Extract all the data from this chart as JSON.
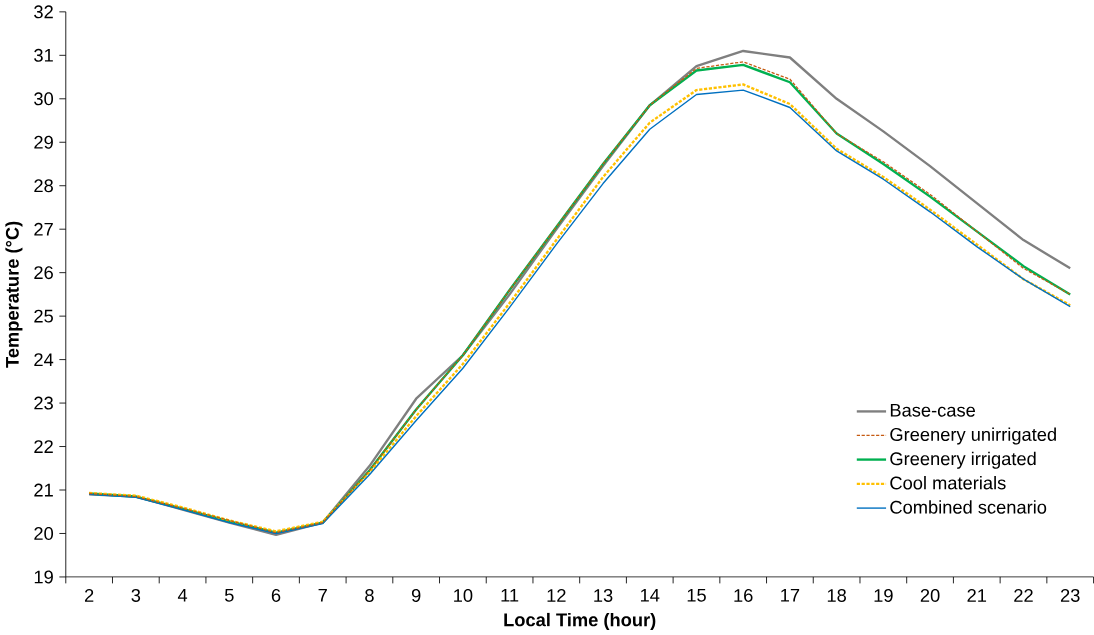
{
  "chart_data": {
    "type": "line",
    "xlabel": "Local Time (hour)",
    "ylabel": "Temperature (°C)",
    "categories": [
      "2",
      "3",
      "4",
      "5",
      "6",
      "7",
      "8",
      "9",
      "10",
      "11",
      "12",
      "13",
      "14",
      "15",
      "16",
      "17",
      "18",
      "19",
      "20",
      "21",
      "22",
      "23"
    ],
    "ylim": [
      19,
      32
    ],
    "yticks": [
      19,
      20,
      21,
      22,
      23,
      24,
      25,
      26,
      27,
      28,
      29,
      30,
      31,
      32
    ],
    "grid": false,
    "legend": "bottom right",
    "marker": "none",
    "series": [
      {
        "name": "Base-case",
        "color": "#7f7f7f",
        "line_style": "solid",
        "values": [
          20.9,
          20.85,
          20.55,
          20.25,
          19.97,
          20.25,
          21.55,
          23.1,
          24.1,
          25.5,
          27.0,
          28.45,
          29.85,
          30.75,
          31.1,
          30.95,
          30.0,
          29.25,
          28.45,
          27.6,
          26.75,
          26.1
        ]
      },
      {
        "name": "Greenery unirrigated",
        "color": "#c55a11",
        "line_style": "dashed",
        "values": [
          20.92,
          20.85,
          20.58,
          20.3,
          20.02,
          20.25,
          21.45,
          22.85,
          24.1,
          25.6,
          27.05,
          28.5,
          29.85,
          30.7,
          30.85,
          30.45,
          29.2,
          28.55,
          27.8,
          26.95,
          26.1,
          25.5
        ]
      },
      {
        "name": "Greenery irrigated",
        "color": "#00b050",
        "line_style": "solid",
        "values": [
          20.92,
          20.85,
          20.57,
          20.28,
          20.02,
          20.25,
          21.45,
          22.85,
          24.1,
          25.6,
          27.05,
          28.5,
          29.85,
          30.65,
          30.78,
          30.38,
          29.2,
          28.5,
          27.75,
          26.95,
          26.15,
          25.5
        ]
      },
      {
        "name": "Cool materials",
        "color": "#ffc000",
        "line_style": "dashed",
        "values": [
          20.93,
          20.87,
          20.6,
          20.3,
          20.05,
          20.27,
          21.4,
          22.7,
          23.9,
          25.3,
          26.75,
          28.2,
          29.45,
          30.2,
          30.33,
          29.88,
          28.85,
          28.2,
          27.45,
          26.65,
          25.85,
          25.25
        ]
      },
      {
        "name": "Combined scenario",
        "color": "#0070c0",
        "line_style": "solid",
        "values": [
          20.9,
          20.83,
          20.55,
          20.25,
          20.0,
          20.23,
          21.35,
          22.6,
          23.8,
          25.2,
          26.65,
          28.05,
          29.3,
          30.1,
          30.2,
          29.8,
          28.8,
          28.15,
          27.4,
          26.6,
          25.85,
          25.22
        ]
      }
    ]
  }
}
